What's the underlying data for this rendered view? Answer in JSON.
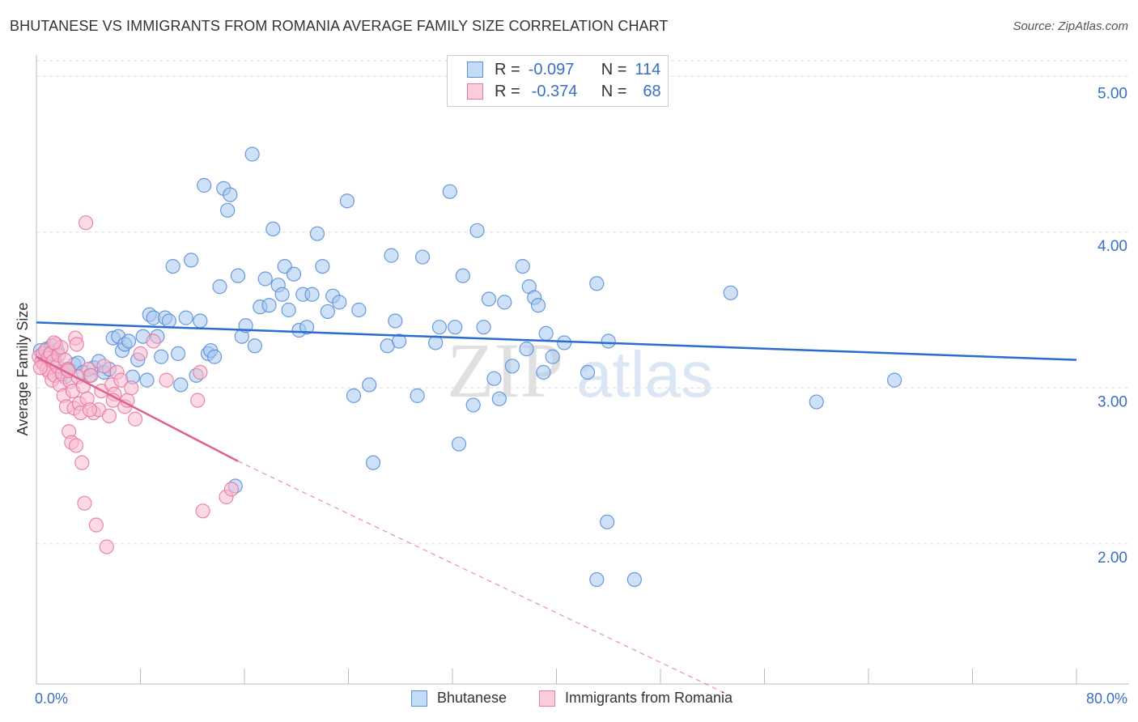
{
  "header": {
    "title": "BHUTANESE VS IMMIGRANTS FROM ROMANIA AVERAGE FAMILY SIZE CORRELATION CHART",
    "source": "Source: ZipAtlas.com"
  },
  "legend": {
    "rows": [
      {
        "r_label": "R =",
        "r_value": "-0.097",
        "n_label": "N =",
        "n_value": "114"
      },
      {
        "r_label": "R =",
        "r_value": "-0.374",
        "n_label": "N =",
        "n_value": "68"
      }
    ],
    "bottom": [
      "Bhutanese",
      "Immigrants from Romania"
    ]
  },
  "watermark": {
    "zip": "ZIP",
    "atlas": "atlas"
  },
  "colors": {
    "blue_fill": "#a8c8f0",
    "blue_stroke": "#5b8fd8",
    "blue_line": "#2a6ccf",
    "pink_fill": "#f8bcd0",
    "pink_stroke": "#e87aa0",
    "pink_line": "#e0608e",
    "axis_label": "#3a6fc4"
  },
  "chart_data": {
    "type": "scatter",
    "xlabel": "",
    "ylabel": "Average Family Size",
    "xlim": [
      0,
      80
    ],
    "ylim": [
      1.1,
      5.1
    ],
    "x_tick_labels": {
      "min": "0.0%",
      "max": "80.0%"
    },
    "y_ticks": [
      2.0,
      3.0,
      4.0,
      5.0
    ],
    "y_tick_labels": [
      "2.00",
      "3.00",
      "4.00",
      "5.00"
    ],
    "series": [
      {
        "name": "Bhutanese",
        "color": "#5b8fd8",
        "trend": {
          "x": [
            0,
            80
          ],
          "y": [
            3.42,
            3.18
          ]
        },
        "points": [
          [
            0.3,
            3.24
          ],
          [
            0.5,
            3.2
          ],
          [
            0.8,
            3.25
          ],
          [
            1.0,
            3.22
          ],
          [
            1.2,
            3.27
          ],
          [
            1.4,
            3.18
          ],
          [
            1.6,
            3.24
          ],
          [
            1.8,
            3.1
          ],
          [
            2.2,
            3.07
          ],
          [
            2.5,
            3.12
          ],
          [
            2.9,
            3.15
          ],
          [
            3.2,
            3.16
          ],
          [
            3.6,
            3.1
          ],
          [
            4.1,
            3.08
          ],
          [
            4.4,
            3.13
          ],
          [
            4.8,
            3.17
          ],
          [
            5.2,
            3.1
          ],
          [
            5.6,
            3.12
          ],
          [
            5.9,
            3.32
          ],
          [
            6.3,
            3.33
          ],
          [
            6.6,
            3.24
          ],
          [
            6.8,
            3.28
          ],
          [
            7.1,
            3.3
          ],
          [
            7.4,
            3.07
          ],
          [
            7.8,
            3.18
          ],
          [
            8.2,
            3.33
          ],
          [
            8.5,
            3.05
          ],
          [
            8.7,
            3.47
          ],
          [
            9.0,
            3.45
          ],
          [
            9.3,
            3.33
          ],
          [
            9.6,
            3.2
          ],
          [
            9.9,
            3.45
          ],
          [
            10.2,
            3.43
          ],
          [
            10.5,
            3.78
          ],
          [
            10.9,
            3.22
          ],
          [
            11.1,
            3.02
          ],
          [
            11.5,
            3.45
          ],
          [
            11.9,
            3.82
          ],
          [
            12.3,
            3.08
          ],
          [
            12.6,
            3.43
          ],
          [
            12.9,
            4.3
          ],
          [
            13.2,
            3.22
          ],
          [
            13.4,
            3.24
          ],
          [
            13.7,
            3.2
          ],
          [
            14.1,
            3.65
          ],
          [
            14.4,
            4.28
          ],
          [
            14.7,
            4.14
          ],
          [
            14.9,
            4.24
          ],
          [
            15.3,
            2.37
          ],
          [
            15.5,
            3.72
          ],
          [
            15.8,
            3.33
          ],
          [
            16.1,
            3.4
          ],
          [
            16.6,
            4.5
          ],
          [
            16.8,
            3.27
          ],
          [
            17.2,
            3.52
          ],
          [
            17.6,
            3.7
          ],
          [
            17.9,
            3.53
          ],
          [
            18.2,
            4.02
          ],
          [
            18.6,
            3.66
          ],
          [
            18.9,
            3.6
          ],
          [
            19.1,
            3.78
          ],
          [
            19.4,
            3.5
          ],
          [
            19.8,
            3.73
          ],
          [
            20.2,
            3.37
          ],
          [
            20.5,
            3.6
          ],
          [
            20.8,
            3.39
          ],
          [
            21.2,
            3.6
          ],
          [
            21.6,
            3.99
          ],
          [
            22.0,
            3.78
          ],
          [
            22.4,
            3.49
          ],
          [
            22.8,
            3.59
          ],
          [
            23.3,
            3.55
          ],
          [
            23.9,
            4.2
          ],
          [
            24.4,
            2.95
          ],
          [
            24.8,
            3.5
          ],
          [
            25.6,
            3.02
          ],
          [
            25.9,
            2.52
          ],
          [
            27.0,
            3.27
          ],
          [
            27.3,
            3.85
          ],
          [
            27.6,
            3.43
          ],
          [
            27.9,
            3.3
          ],
          [
            29.3,
            2.95
          ],
          [
            29.7,
            3.84
          ],
          [
            30.7,
            3.29
          ],
          [
            31.0,
            3.39
          ],
          [
            31.8,
            4.26
          ],
          [
            32.2,
            3.39
          ],
          [
            32.5,
            2.64
          ],
          [
            32.8,
            3.72
          ],
          [
            33.6,
            2.89
          ],
          [
            33.9,
            4.01
          ],
          [
            34.4,
            3.39
          ],
          [
            34.8,
            3.57
          ],
          [
            35.2,
            3.06
          ],
          [
            35.6,
            2.93
          ],
          [
            36.0,
            3.55
          ],
          [
            36.6,
            3.14
          ],
          [
            37.4,
            3.78
          ],
          [
            37.7,
            3.25
          ],
          [
            37.9,
            3.65
          ],
          [
            38.3,
            3.58
          ],
          [
            38.6,
            3.53
          ],
          [
            39.0,
            3.1
          ],
          [
            39.2,
            3.35
          ],
          [
            39.7,
            3.2
          ],
          [
            40.6,
            3.29
          ],
          [
            42.4,
            3.1
          ],
          [
            43.1,
            3.67
          ],
          [
            43.9,
            2.14
          ],
          [
            44.0,
            3.3
          ],
          [
            43.1,
            1.77
          ],
          [
            46.0,
            1.77
          ],
          [
            53.4,
            3.61
          ],
          [
            60.0,
            2.91
          ],
          [
            66.0,
            3.05
          ]
        ]
      },
      {
        "name": "Immigrants from Romania",
        "color": "#e87aa0",
        "trend": {
          "x": [
            0,
            15.5
          ],
          "y": [
            3.2,
            2.53
          ]
        },
        "trend_extension": {
          "x": [
            15.5,
            53.5
          ],
          "y": [
            2.53,
            1.02
          ]
        },
        "points": [
          [
            0.2,
            3.2
          ],
          [
            0.4,
            3.17
          ],
          [
            0.5,
            3.22
          ],
          [
            0.6,
            3.15
          ],
          [
            0.7,
            3.24
          ],
          [
            0.8,
            3.12
          ],
          [
            0.9,
            3.19
          ],
          [
            1.0,
            3.1
          ],
          [
            1.1,
            3.22
          ],
          [
            1.2,
            3.05
          ],
          [
            1.3,
            3.17
          ],
          [
            1.4,
            3.08
          ],
          [
            1.5,
            3.28
          ],
          [
            1.6,
            3.14
          ],
          [
            1.7,
            3.21
          ],
          [
            1.8,
            3.02
          ],
          [
            1.9,
            3.26
          ],
          [
            2.0,
            3.09
          ],
          [
            2.1,
            2.95
          ],
          [
            2.2,
            3.18
          ],
          [
            2.3,
            2.88
          ],
          [
            2.4,
            3.12
          ],
          [
            2.5,
            2.72
          ],
          [
            2.6,
            3.04
          ],
          [
            2.7,
            2.65
          ],
          [
            2.8,
            2.98
          ],
          [
            2.9,
            2.87
          ],
          [
            3.0,
            3.32
          ],
          [
            3.1,
            3.28
          ],
          [
            3.2,
            3.07
          ],
          [
            3.3,
            2.9
          ],
          [
            3.4,
            2.84
          ],
          [
            3.5,
            2.52
          ],
          [
            3.6,
            3.01
          ],
          [
            3.7,
            2.26
          ],
          [
            3.8,
            4.06
          ],
          [
            3.9,
            2.93
          ],
          [
            4.0,
            3.12
          ],
          [
            4.2,
            3.08
          ],
          [
            4.4,
            2.84
          ],
          [
            4.6,
            2.12
          ],
          [
            4.8,
            2.86
          ],
          [
            5.0,
            2.98
          ],
          [
            5.2,
            3.14
          ],
          [
            5.4,
            1.98
          ],
          [
            5.6,
            2.82
          ],
          [
            5.8,
            3.02
          ],
          [
            6.0,
            2.96
          ],
          [
            6.2,
            3.1
          ],
          [
            6.5,
            3.05
          ],
          [
            6.8,
            2.88
          ],
          [
            7.0,
            2.92
          ],
          [
            7.3,
            3.0
          ],
          [
            7.6,
            2.8
          ],
          [
            8.0,
            3.22
          ],
          [
            9.0,
            3.3
          ],
          [
            10.0,
            3.05
          ],
          [
            12.4,
            2.92
          ],
          [
            12.6,
            3.1
          ],
          [
            12.8,
            2.21
          ],
          [
            14.6,
            2.3
          ],
          [
            15.0,
            2.35
          ],
          [
            0.3,
            3.13
          ],
          [
            1.35,
            3.29
          ],
          [
            2.45,
            3.11
          ],
          [
            3.05,
            2.63
          ],
          [
            4.1,
            2.86
          ],
          [
            5.9,
            2.92
          ]
        ]
      }
    ]
  }
}
